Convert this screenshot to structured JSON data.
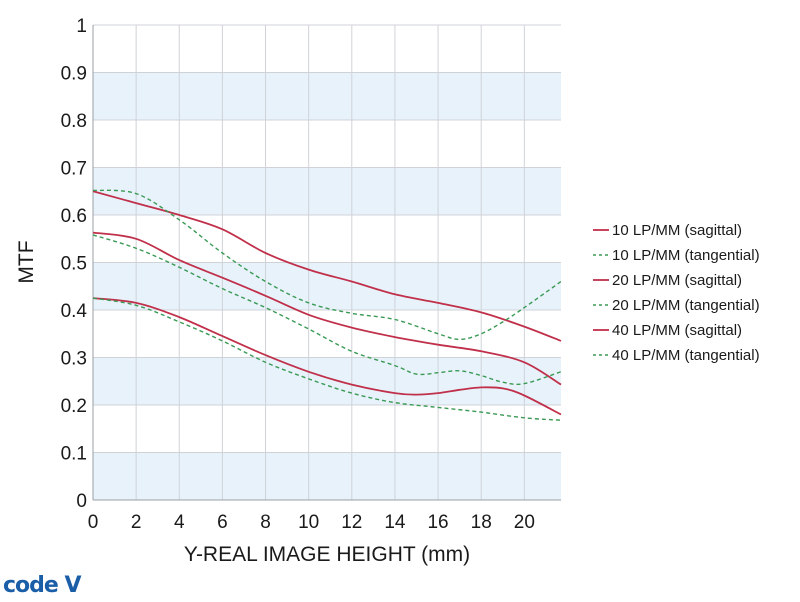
{
  "chart_data": {
    "type": "line",
    "xlabel": "Y-REAL IMAGE HEIGHT (mm)",
    "ylabel": "MTF",
    "xlim": [
      0,
      21.7
    ],
    "ylim": [
      0,
      1
    ],
    "x_ticks": [
      0,
      2,
      4,
      6,
      8,
      10,
      12,
      14,
      16,
      18,
      20
    ],
    "y_ticks": [
      0,
      0.1,
      0.2,
      0.3,
      0.4,
      0.5,
      0.6,
      0.7,
      0.8,
      0.9,
      1
    ],
    "y_tick_labels": [
      "0",
      "0.1",
      "0.2",
      "0.3",
      "0.4",
      "0.5",
      "0.6",
      "0.7",
      "0.8",
      "0.9",
      "1"
    ],
    "grid": true,
    "legend_position": "right",
    "series": [
      {
        "name": "10 LP/MM (sagittal)",
        "style": "solid",
        "color": "#c0304a",
        "x": [
          0,
          2,
          4,
          6,
          8,
          10,
          12,
          14,
          16,
          18,
          20,
          21.7
        ],
        "y": [
          0.65,
          0.625,
          0.6,
          0.57,
          0.52,
          0.485,
          0.46,
          0.433,
          0.415,
          0.395,
          0.365,
          0.335
        ]
      },
      {
        "name": "10 LP/MM (tangential)",
        "style": "dashed",
        "color": "#3a9a55",
        "x": [
          0,
          2,
          4,
          6,
          8,
          10,
          12,
          14,
          16,
          17,
          18,
          19,
          20,
          21.7
        ],
        "y": [
          0.652,
          0.645,
          0.59,
          0.52,
          0.46,
          0.415,
          0.393,
          0.38,
          0.35,
          0.338,
          0.35,
          0.375,
          0.405,
          0.46
        ]
      },
      {
        "name": "20 LP/MM (sagittal)",
        "style": "solid",
        "color": "#c0304a",
        "x": [
          0,
          2,
          4,
          6,
          8,
          10,
          12,
          14,
          16,
          18,
          20,
          21.7
        ],
        "y": [
          0.563,
          0.55,
          0.505,
          0.468,
          0.43,
          0.39,
          0.363,
          0.343,
          0.327,
          0.313,
          0.29,
          0.243
        ]
      },
      {
        "name": "20 LP/MM (tangential)",
        "style": "dashed",
        "color": "#3a9a55",
        "x": [
          0,
          2,
          4,
          6,
          8,
          10,
          12,
          14,
          15,
          16,
          17,
          18,
          19,
          20,
          21.7
        ],
        "y": [
          0.558,
          0.53,
          0.49,
          0.445,
          0.405,
          0.36,
          0.313,
          0.283,
          0.265,
          0.268,
          0.272,
          0.262,
          0.248,
          0.245,
          0.27
        ]
      },
      {
        "name": "40 LP/MM (sagittal)",
        "style": "solid",
        "color": "#c0304a",
        "x": [
          0,
          2,
          4,
          6,
          8,
          10,
          12,
          14,
          15,
          16,
          17,
          18,
          19,
          20,
          21.7
        ],
        "y": [
          0.425,
          0.415,
          0.385,
          0.345,
          0.305,
          0.27,
          0.243,
          0.225,
          0.222,
          0.225,
          0.232,
          0.237,
          0.235,
          0.22,
          0.18
        ]
      },
      {
        "name": "40 LP/MM (tangential)",
        "style": "dashed",
        "color": "#3a9a55",
        "x": [
          0,
          2,
          4,
          6,
          8,
          10,
          12,
          14,
          16,
          18,
          20,
          21.7
        ],
        "y": [
          0.425,
          0.41,
          0.375,
          0.335,
          0.29,
          0.255,
          0.225,
          0.205,
          0.195,
          0.185,
          0.173,
          0.168
        ]
      }
    ],
    "colors": {
      "band": "#e8f2fb",
      "grid": "#cfd3d8",
      "axis": "#9aa0a6"
    }
  },
  "logo": {
    "text": "code V"
  }
}
